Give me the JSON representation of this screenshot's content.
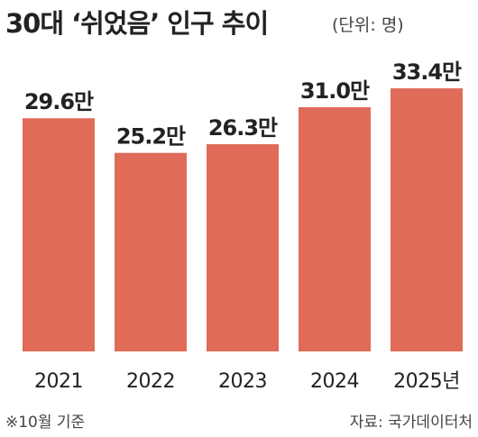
{
  "chart_data": {
    "type": "bar",
    "title": "30대 ‘쉬었음’ 인구 추이",
    "subtitle": "(단위: 명)",
    "categories": [
      "2021",
      "2022",
      "2023",
      "2024",
      "2025년"
    ],
    "values": [
      29.6,
      25.2,
      26.3,
      31.0,
      33.4
    ],
    "value_labels": [
      "29.6만",
      "25.2만",
      "26.3만",
      "31.0만",
      "33.4만"
    ],
    "color": "#e06b58",
    "notes": [
      "※10월 기준",
      "자료: 국가데이터처"
    ]
  }
}
